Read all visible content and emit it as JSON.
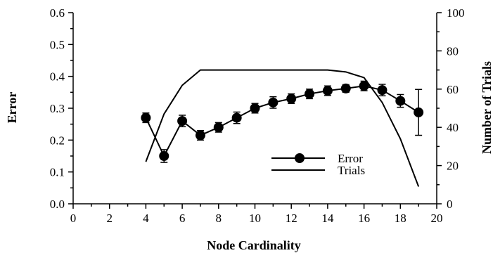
{
  "chart_data": {
    "type": "line",
    "xlabel": "Node Cardinality",
    "ylabel": "Error",
    "y2label": "Number of Trials",
    "xlim": [
      0,
      20
    ],
    "ylim": [
      0,
      0.6
    ],
    "y2lim": [
      0,
      100
    ],
    "x_ticks": [
      "0",
      "2",
      "4",
      "6",
      "8",
      "10",
      "12",
      "14",
      "16",
      "18",
      "20"
    ],
    "y_ticks": [
      "0.0",
      "0.1",
      "0.2",
      "0.3",
      "0.4",
      "0.5",
      "0.6"
    ],
    "y2_ticks": [
      "0",
      "20",
      "40",
      "60",
      "80",
      "100"
    ],
    "grid": false,
    "legend_position": "lower-center-right",
    "series": [
      {
        "name": "Error",
        "axis": "left",
        "marker": "circle",
        "x": [
          4,
          5,
          6,
          7,
          8,
          9,
          10,
          11,
          12,
          13,
          14,
          15,
          16,
          17,
          18,
          19
        ],
        "y": [
          0.27,
          0.15,
          0.26,
          0.215,
          0.24,
          0.27,
          0.3,
          0.318,
          0.33,
          0.345,
          0.355,
          0.362,
          0.37,
          0.357,
          0.323,
          0.287
        ],
        "err": [
          0.015,
          0.02,
          0.018,
          0.015,
          0.015,
          0.018,
          0.015,
          0.018,
          0.015,
          0.015,
          0.015,
          0.012,
          0.015,
          0.018,
          0.02,
          0.072
        ]
      },
      {
        "name": "Trials",
        "axis": "right",
        "marker": "none",
        "x": [
          4,
          5,
          6,
          7,
          8,
          9,
          10,
          11,
          12,
          13,
          14,
          15,
          16,
          17,
          18,
          19
        ],
        "y": [
          22,
          47,
          62,
          70,
          70,
          70,
          70,
          70,
          70,
          70,
          70,
          69,
          66,
          53,
          34,
          9
        ]
      }
    ]
  }
}
